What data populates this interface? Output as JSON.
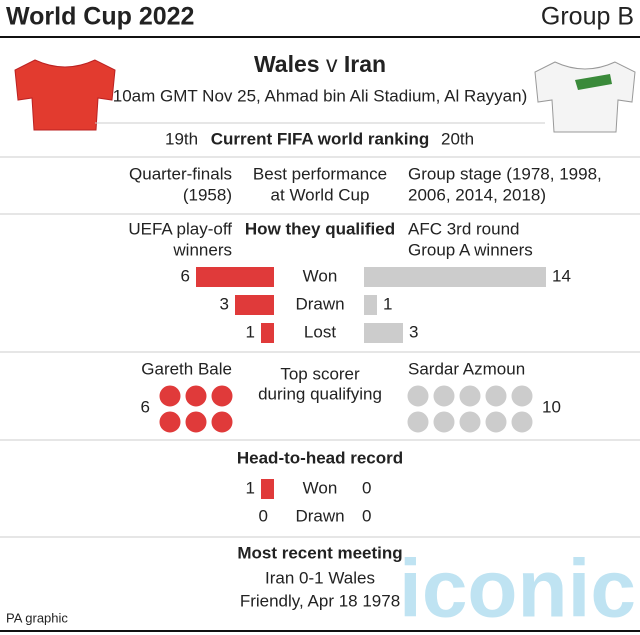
{
  "header": {
    "title": "World Cup 2022",
    "group": "Group B"
  },
  "match": {
    "home": "Wales",
    "sep": "v",
    "away": "Iran",
    "details": "10am GMT Nov 25, Ahmad bin Ali Stadium, Al Rayyan)"
  },
  "ranking": {
    "home": "19th",
    "label": "Current FIFA world ranking",
    "away": "20th"
  },
  "best": {
    "home": [
      "Quarter-finals",
      "(1958)"
    ],
    "label": [
      "Best performance",
      "at World Cup"
    ],
    "away": [
      "Group stage (1978, 1998,",
      "2006, 2014, 2018)"
    ]
  },
  "qualified": {
    "home": [
      "UEFA play-off",
      "winners"
    ],
    "label": "How they qualified",
    "away": [
      "AFC 3rd round",
      "Group A winners"
    ],
    "home_color": "#e03a3a",
    "away_color": "#cccccc",
    "rows": [
      {
        "label": "Won",
        "home": 6,
        "away": 14
      },
      {
        "label": "Drawn",
        "home": 3,
        "away": 1
      },
      {
        "label": "Lost",
        "home": 1,
        "away": 3
      }
    ]
  },
  "scorer": {
    "label": [
      "Top scorer",
      "during qualifying"
    ],
    "home": {
      "name": "Gareth Bale",
      "goals": 6
    },
    "away": {
      "name": "Sardar Azmoun",
      "goals": 10
    }
  },
  "h2h": {
    "title": "Head-to-head record",
    "rows": [
      {
        "label": "Won",
        "home": 1,
        "away": 0
      },
      {
        "label": "Drawn",
        "home": 0,
        "away": 0
      }
    ]
  },
  "recent": {
    "title": "Most recent meeting",
    "lines": [
      "Iran 0-1 Wales",
      "Friendly, Apr 18 1978"
    ]
  },
  "footer": {
    "credit": "PA graphic",
    "watermark": "iconic"
  }
}
